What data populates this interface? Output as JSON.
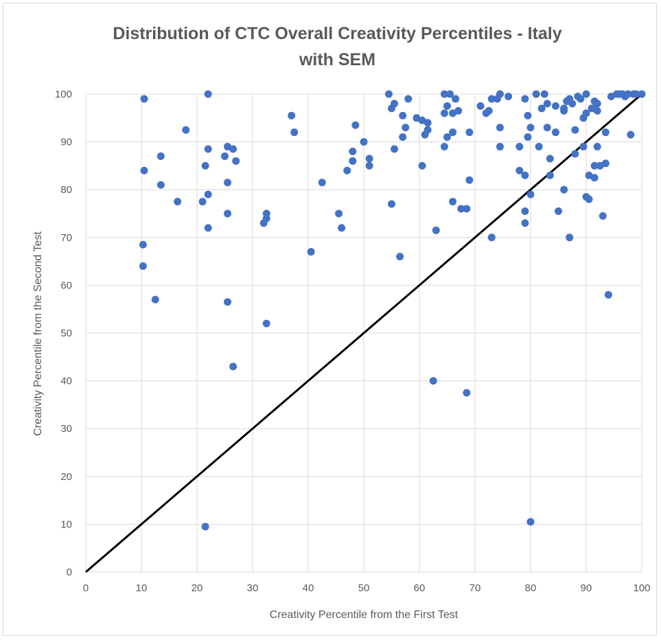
{
  "chart_data": {
    "type": "scatter",
    "title_line1": "Distribution of CTC Overall Creativity Percentiles - Italy",
    "title_line2": "with SEM",
    "xlabel": "Creativity Percentile from the First Test",
    "ylabel": "Creativity Percentile from the Second Test",
    "xlim": [
      0,
      100
    ],
    "ylim": [
      0,
      100
    ],
    "xticks": [
      "0",
      "10",
      "20",
      "30",
      "40",
      "50",
      "60",
      "70",
      "80",
      "90",
      "100"
    ],
    "yticks": [
      "0",
      "10",
      "20",
      "30",
      "40",
      "50",
      "60",
      "70",
      "80",
      "90",
      "100"
    ],
    "grid": true,
    "point_color": "#4472c4",
    "line_color": "#000000",
    "reference_line": {
      "x": [
        0,
        100
      ],
      "y": [
        0,
        100
      ]
    },
    "points": [
      [
        10.5,
        99
      ],
      [
        10.5,
        84
      ],
      [
        10.3,
        68.5
      ],
      [
        10.3,
        64
      ],
      [
        12.5,
        57
      ],
      [
        13.5,
        87
      ],
      [
        13.5,
        81
      ],
      [
        16.5,
        77.5
      ],
      [
        18,
        92.5
      ],
      [
        21,
        77.5
      ],
      [
        21.5,
        85
      ],
      [
        22,
        100
      ],
      [
        22,
        88.5
      ],
      [
        22,
        79
      ],
      [
        22,
        72
      ],
      [
        21.5,
        9.5
      ],
      [
        25,
        87
      ],
      [
        25.5,
        89
      ],
      [
        25.5,
        81.5
      ],
      [
        25.5,
        75
      ],
      [
        25.5,
        56.5
      ],
      [
        26.5,
        88.5
      ],
      [
        27,
        86
      ],
      [
        26.5,
        43
      ],
      [
        32,
        73
      ],
      [
        32.5,
        75
      ],
      [
        32.5,
        74
      ],
      [
        32.5,
        52
      ],
      [
        37,
        95.5
      ],
      [
        37.5,
        92
      ],
      [
        40.5,
        67
      ],
      [
        42.5,
        81.5
      ],
      [
        45.5,
        75
      ],
      [
        46,
        72
      ],
      [
        47,
        84
      ],
      [
        48,
        88
      ],
      [
        48,
        86
      ],
      [
        48.5,
        93.5
      ],
      [
        50,
        90
      ],
      [
        51,
        86.5
      ],
      [
        51,
        85
      ],
      [
        54.5,
        100
      ],
      [
        55,
        97
      ],
      [
        55.5,
        98
      ],
      [
        55.5,
        88.5
      ],
      [
        55,
        77
      ],
      [
        57,
        95.5
      ],
      [
        57,
        91
      ],
      [
        57.5,
        93
      ],
      [
        56.5,
        66
      ],
      [
        58,
        99
      ],
      [
        59.5,
        95
      ],
      [
        60.5,
        94.5
      ],
      [
        61.5,
        94
      ],
      [
        61.5,
        92.5
      ],
      [
        61,
        91.5
      ],
      [
        60.5,
        85
      ],
      [
        62.5,
        40
      ],
      [
        63,
        71.5
      ],
      [
        64.5,
        100
      ],
      [
        65.5,
        100
      ],
      [
        64.5,
        96
      ],
      [
        65,
        97.5
      ],
      [
        66,
        96
      ],
      [
        66.5,
        99
      ],
      [
        66,
        92
      ],
      [
        64.5,
        89
      ],
      [
        65,
        91
      ],
      [
        66,
        77.5
      ],
      [
        67,
        96.5
      ],
      [
        67.5,
        76
      ],
      [
        68.5,
        76
      ],
      [
        69,
        82
      ],
      [
        69,
        92
      ],
      [
        68.5,
        37.5
      ],
      [
        71,
        97.5
      ],
      [
        72,
        96
      ],
      [
        72.5,
        96.5
      ],
      [
        73,
        99
      ],
      [
        74,
        99
      ],
      [
        74.5,
        100
      ],
      [
        73,
        70
      ],
      [
        74.5,
        93
      ],
      [
        74.5,
        89
      ],
      [
        76,
        99.5
      ],
      [
        78,
        84
      ],
      [
        78,
        89
      ],
      [
        79,
        99
      ],
      [
        79.5,
        95.5
      ],
      [
        79.5,
        91
      ],
      [
        79,
        83
      ],
      [
        79,
        75.5
      ],
      [
        79,
        73
      ],
      [
        80,
        79
      ],
      [
        80,
        93
      ],
      [
        80,
        10.5
      ],
      [
        81,
        100
      ],
      [
        81.5,
        89
      ],
      [
        82,
        97
      ],
      [
        82.5,
        100
      ],
      [
        83,
        98
      ],
      [
        83,
        93
      ],
      [
        83.5,
        86.5
      ],
      [
        83.5,
        83
      ],
      [
        84.5,
        97.5
      ],
      [
        84.5,
        92
      ],
      [
        85,
        75.5
      ],
      [
        86,
        96.5
      ],
      [
        86,
        97
      ],
      [
        86.5,
        98.5
      ],
      [
        86,
        80
      ],
      [
        87,
        99
      ],
      [
        87,
        70
      ],
      [
        87.5,
        98
      ],
      [
        88,
        92.5
      ],
      [
        88,
        87.5
      ],
      [
        88.5,
        99.5
      ],
      [
        89,
        99
      ],
      [
        90,
        100
      ],
      [
        89.5,
        95
      ],
      [
        90,
        96
      ],
      [
        89.5,
        89
      ],
      [
        90,
        78.5
      ],
      [
        90.5,
        78
      ],
      [
        90.5,
        83
      ],
      [
        91,
        97
      ],
      [
        91.5,
        98.5
      ],
      [
        91.5,
        97
      ],
      [
        91.5,
        82.5
      ],
      [
        91.5,
        85
      ],
      [
        92,
        96.5
      ],
      [
        92,
        89
      ],
      [
        92,
        98
      ],
      [
        92.5,
        85
      ],
      [
        93,
        74.5
      ],
      [
        93.5,
        92
      ],
      [
        93.5,
        85.5
      ],
      [
        94,
        58
      ],
      [
        94.5,
        99.5
      ],
      [
        95.5,
        100
      ],
      [
        96,
        100
      ],
      [
        96.5,
        100
      ],
      [
        97,
        99.5
      ],
      [
        97.5,
        100
      ],
      [
        98,
        91.5
      ],
      [
        98.5,
        100
      ],
      [
        99,
        100
      ],
      [
        100,
        100
      ]
    ]
  }
}
